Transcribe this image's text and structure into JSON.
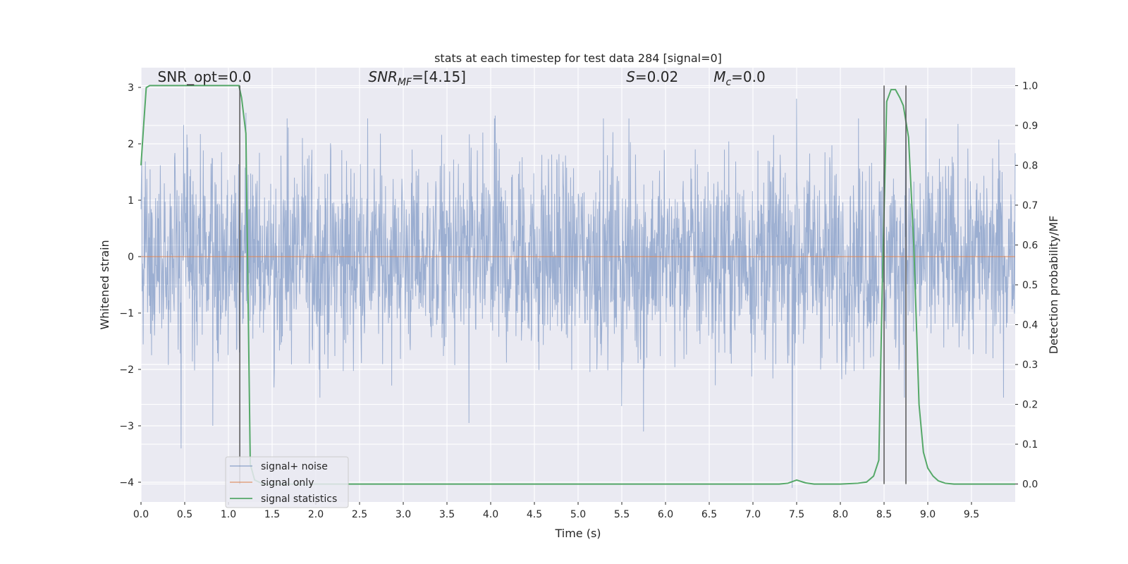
{
  "chart_data": {
    "type": "line",
    "title": "stats at each timestep for test data 284 [signal=0]",
    "xlabel": "Time (s)",
    "ylabel": "Whitened strain",
    "y2label": "Detection probability/MF",
    "xlim": [
      0.0,
      10.0
    ],
    "ylim": [
      -4.35,
      3.35
    ],
    "y2lim": [
      -0.045,
      1.045
    ],
    "x_ticks": [
      0.0,
      0.5,
      1.0,
      1.5,
      2.0,
      2.5,
      3.0,
      3.5,
      4.0,
      4.5,
      5.0,
      5.5,
      6.0,
      6.5,
      7.0,
      7.5,
      8.0,
      8.5,
      9.0,
      9.5
    ],
    "x_tick_labels": [
      "0.0",
      "0.5",
      "1.0",
      "1.5",
      "2.0",
      "2.5",
      "3.0",
      "3.5",
      "4.0",
      "4.5",
      "5.0",
      "5.5",
      "6.0",
      "6.5",
      "7.0",
      "7.5",
      "8.0",
      "8.5",
      "9.0",
      "9.5"
    ],
    "y_ticks": [
      -4,
      -3,
      -2,
      -1,
      0,
      1,
      2,
      3
    ],
    "y_tick_labels": [
      "−4",
      "−3",
      "−2",
      "−1",
      "0",
      "1",
      "2",
      "3"
    ],
    "y2_ticks": [
      0.0,
      0.1,
      0.2,
      0.3,
      0.4,
      0.5,
      0.6,
      0.7,
      0.8,
      0.9,
      1.0
    ],
    "y2_tick_labels": [
      "0.0",
      "0.1",
      "0.2",
      "0.3",
      "0.4",
      "0.5",
      "0.6",
      "0.7",
      "0.8",
      "0.9",
      "1.0"
    ],
    "grid": true,
    "legend_position": "bottom-left",
    "annotations": [
      {
        "text": "SNR_opt=0.0",
        "x": 0.19,
        "y": 3.1
      },
      {
        "text": "SNR_MF=[4.15]",
        "x": 2.6,
        "y": 3.1
      },
      {
        "text": "S=0.02",
        "x": 5.55,
        "y": 3.1
      },
      {
        "text": "M_c=0.0",
        "x": 6.55,
        "y": 3.1
      }
    ],
    "vertical_lines": [
      1.13,
      8.5,
      8.75
    ],
    "noise_amplitude": {
      "typical_band": [
        -1.9,
        1.9
      ],
      "notable_peaks": [
        [
          0.46,
          -3.4
        ],
        [
          0.82,
          -3.0
        ],
        [
          1.2,
          2.55
        ],
        [
          3.75,
          -2.95
        ],
        [
          4.05,
          2.5
        ],
        [
          5.5,
          -2.65
        ],
        [
          5.75,
          -3.1
        ],
        [
          7.45,
          -4.1
        ],
        [
          7.5,
          2.8
        ],
        [
          8.75,
          2.45
        ]
      ]
    },
    "series": [
      {
        "name": "signal+ noise",
        "color": "#4c72b0",
        "note": "dense noisy strain trace"
      },
      {
        "name": "signal only",
        "color": "#dd8452",
        "x": [
          0.0,
          10.0
        ],
        "y": [
          0.0,
          0.0
        ]
      },
      {
        "name": "signal statistics",
        "color": "#55a868",
        "axis": "right",
        "x": [
          0.0,
          0.03,
          0.06,
          0.1,
          0.2,
          0.4,
          0.6,
          0.8,
          1.0,
          1.12,
          1.15,
          1.2,
          1.25,
          1.3,
          1.4,
          2.0,
          4.0,
          6.0,
          7.0,
          7.3,
          7.4,
          7.5,
          7.6,
          7.7,
          8.0,
          8.2,
          8.3,
          8.38,
          8.44,
          8.48,
          8.53,
          8.58,
          8.63,
          8.68,
          8.72,
          8.78,
          8.84,
          8.9,
          8.95,
          9.0,
          9.06,
          9.12,
          9.2,
          9.3,
          9.5,
          10.0
        ],
        "y": [
          0.8,
          0.9,
          0.995,
          1.0,
          1.0,
          1.0,
          1.0,
          1.0,
          1.0,
          1.0,
          0.97,
          0.88,
          0.05,
          0.01,
          0.0,
          0.0,
          0.0,
          0.0,
          0.0,
          0.0,
          0.002,
          0.01,
          0.003,
          0.0,
          0.0,
          0.002,
          0.005,
          0.02,
          0.06,
          0.5,
          0.96,
          0.99,
          0.99,
          0.97,
          0.95,
          0.87,
          0.6,
          0.2,
          0.08,
          0.04,
          0.02,
          0.008,
          0.002,
          0.0,
          0.0,
          0.0
        ]
      }
    ]
  }
}
